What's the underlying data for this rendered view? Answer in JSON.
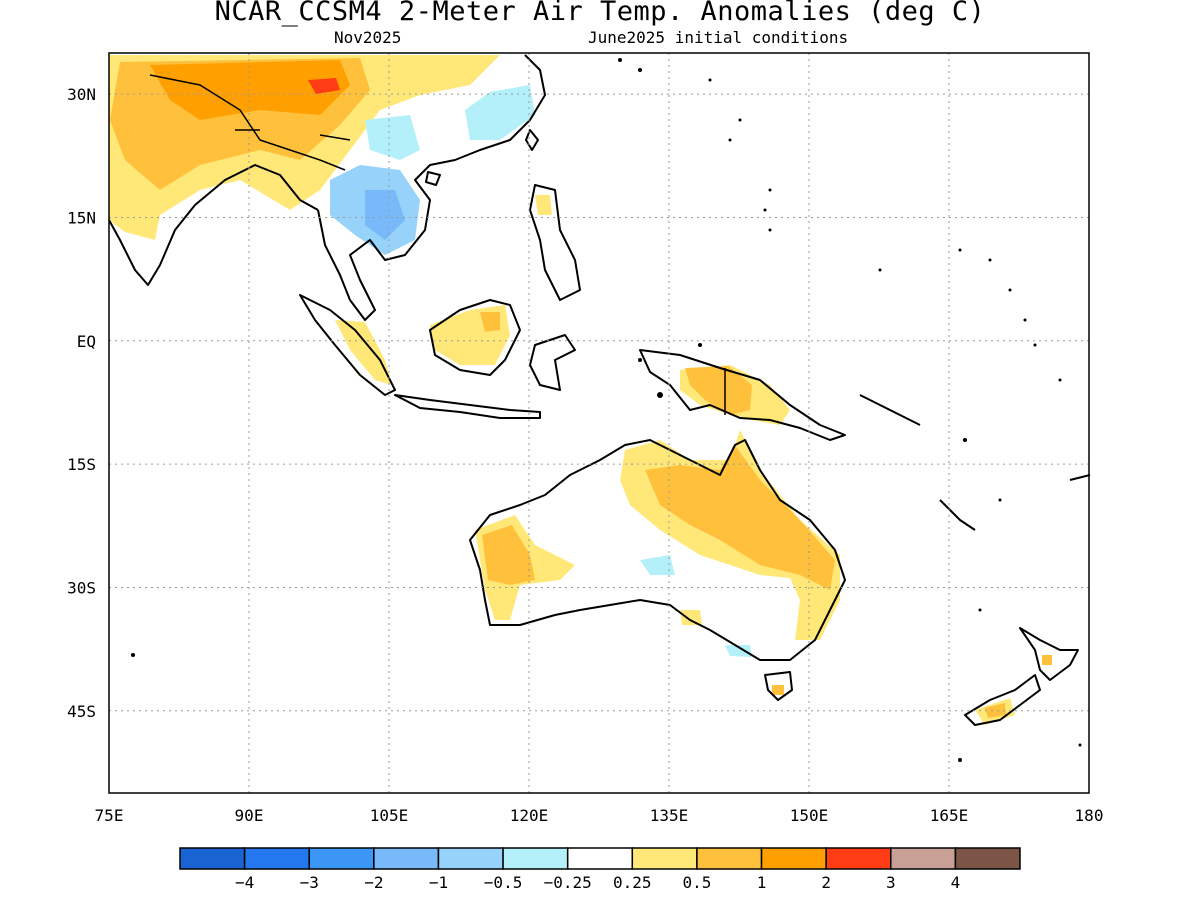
{
  "title": "NCAR_CCSM4 2-Meter Air Temp. Anomalies (deg C)",
  "subtitle_left": "Nov2025",
  "subtitle_right": "June2025 initial conditions",
  "map": {
    "lon_range": [
      75,
      180
    ],
    "lat_range": [
      -55,
      35
    ],
    "x_ticks": [
      "75E",
      "90E",
      "105E",
      "120E",
      "135E",
      "150E",
      "165E",
      "180"
    ],
    "y_ticks": [
      "30N",
      "15N",
      "EQ",
      "15S",
      "30S",
      "45S"
    ],
    "grid": true
  },
  "colorbar": {
    "colors": [
      "#1964d2",
      "#2378f0",
      "#3c96f5",
      "#78b9fa",
      "#96d2fa",
      "#b4f0fa",
      "#ffffff",
      "#ffe878",
      "#ffc03c",
      "#ffa000",
      "#ff3c14",
      "#c8a096",
      "#7d5546"
    ],
    "labels": [
      "−4",
      "−3",
      "−2",
      "−1",
      "−0.5",
      "−0.25",
      "0.25",
      "0.5",
      "1",
      "2",
      "3",
      "4"
    ]
  },
  "colors": {
    "warm_light": "#ffe878",
    "warm": "#ffc03c",
    "warm_strong": "#ffa000",
    "hot": "#ff3c14",
    "cool_light": "#b4f0fa",
    "cool": "#96d2fa",
    "cool_strong": "#78b9fa"
  }
}
